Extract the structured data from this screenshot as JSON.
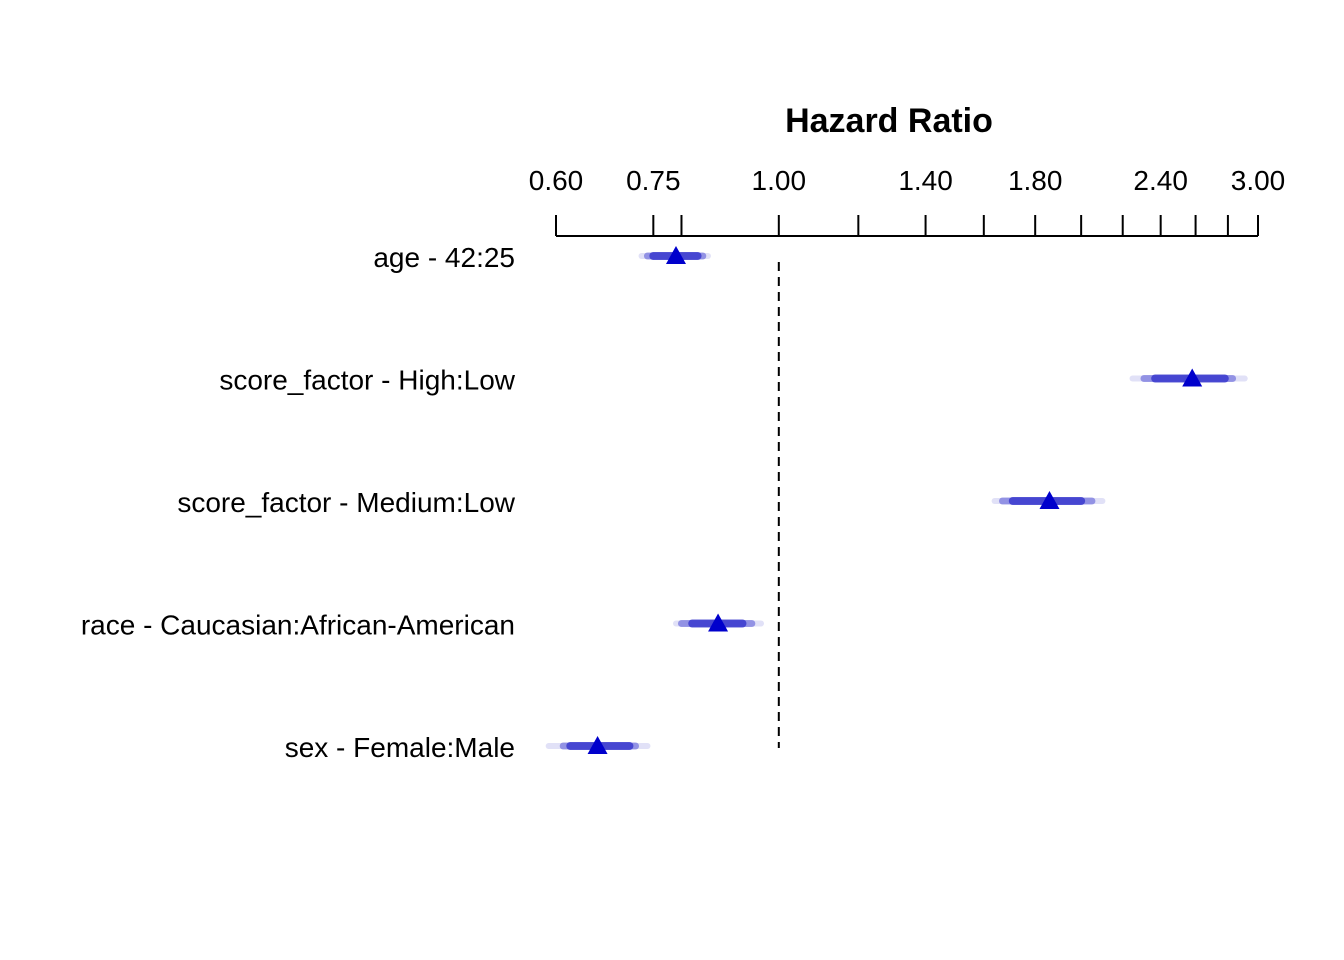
{
  "chart_data": {
    "type": "forest",
    "title": "Hazard Ratio",
    "xscale": "log",
    "xlim": [
      0.6,
      3.0
    ],
    "tick_labels": [
      "0.60",
      "0.75",
      "1.00",
      "1.40",
      "1.80",
      "2.40",
      "3.00"
    ],
    "tick_values": [
      0.6,
      0.75,
      1.0,
      1.4,
      1.8,
      2.4,
      3.0
    ],
    "minor_ticks": [
      0.8,
      1.2,
      1.6,
      2.0,
      2.2,
      2.6,
      2.8
    ],
    "reference_line": 1.0,
    "rows": [
      {
        "label": "age - 42:25",
        "estimate": 0.79,
        "ci_inner": [
          0.75,
          0.83
        ],
        "ci_mid": [
          0.74,
          0.84
        ],
        "ci_outer": [
          0.73,
          0.85
        ]
      },
      {
        "label": "score_factor - High:Low",
        "estimate": 2.58,
        "ci_inner": [
          2.37,
          2.78
        ],
        "ci_mid": [
          2.31,
          2.83
        ],
        "ci_outer": [
          2.25,
          2.91
        ]
      },
      {
        "label": "score_factor - Medium:Low",
        "estimate": 1.86,
        "ci_inner": [
          1.71,
          2.0
        ],
        "ci_mid": [
          1.67,
          2.05
        ],
        "ci_outer": [
          1.64,
          2.1
        ]
      },
      {
        "label": "race - Caucasian:African-American",
        "estimate": 0.87,
        "ci_inner": [
          0.82,
          0.92
        ],
        "ci_mid": [
          0.8,
          0.94
        ],
        "ci_outer": [
          0.79,
          0.96
        ]
      },
      {
        "label": "sex - Female:Male",
        "estimate": 0.66,
        "ci_inner": [
          0.62,
          0.71
        ],
        "ci_mid": [
          0.61,
          0.72
        ],
        "ci_outer": [
          0.59,
          0.74
        ]
      }
    ],
    "colors": {
      "estimate": "#0000cc",
      "ci": "#3333cc"
    }
  }
}
